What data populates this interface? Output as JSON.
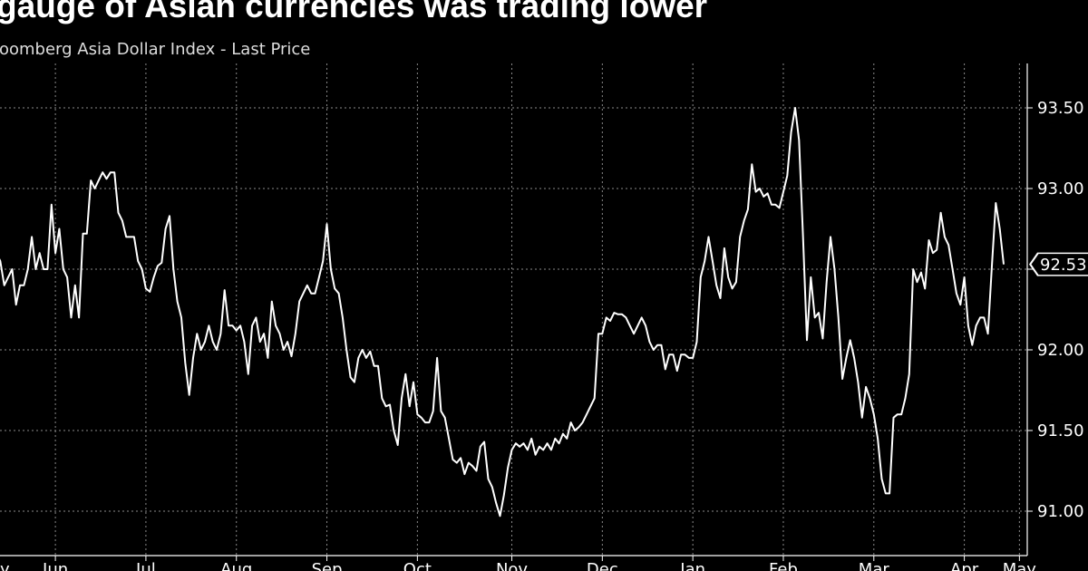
{
  "chart_data": {
    "type": "line",
    "title": "gauge of Asian currencies was trading lower",
    "subtitle": "loomberg Asia Dollar Index - Last Price",
    "ylim": [
      90.7,
      93.8
    ],
    "yticks": [
      91.0,
      91.5,
      92.0,
      92.5,
      93.0,
      93.5
    ],
    "ytick_labels": [
      "91.00",
      "91.50",
      "92.00",
      "92.50",
      "93.00",
      "93.50"
    ],
    "grid": true,
    "xticks": [
      {
        "label": "y",
        "i": 0
      },
      {
        "label": "Jun",
        "i": 15
      },
      {
        "label": "Jul",
        "i": 38
      },
      {
        "label": "Aug",
        "i": 61
      },
      {
        "label": "Sep",
        "i": 84
      },
      {
        "label": "Oct",
        "i": 107
      },
      {
        "label": "Nov",
        "i": 131
      },
      {
        "label": "Dec",
        "i": 154
      },
      {
        "label": "Jan",
        "i": 177
      },
      {
        "label": "Feb",
        "i": 200
      },
      {
        "label": "Mar",
        "i": 223
      },
      {
        "label": "Apr",
        "i": 246
      },
      {
        "label": "May",
        "i": 260
      }
    ],
    "last_value_label": "92.53",
    "series": [
      {
        "values": [
          92.6,
          92.55,
          92.4,
          92.45,
          92.5,
          92.28,
          92.4,
          92.4,
          92.5,
          92.7,
          92.5,
          92.6,
          92.5,
          92.5,
          92.9,
          92.6,
          92.75,
          92.5,
          92.45,
          92.2,
          92.4,
          92.2,
          92.72,
          92.72,
          93.05,
          93.0,
          93.05,
          93.1,
          93.06,
          93.1,
          93.1,
          92.85,
          92.8,
          92.7,
          92.7,
          92.7,
          92.55,
          92.5,
          92.38,
          92.36,
          92.45,
          92.52,
          92.54,
          92.75,
          92.83,
          92.5,
          92.3,
          92.2,
          91.92,
          91.72,
          91.95,
          92.1,
          92.0,
          92.05,
          92.15,
          92.05,
          92.0,
          92.1,
          92.37,
          92.15,
          92.15,
          92.12,
          92.15,
          92.05,
          91.85,
          92.15,
          92.2,
          92.05,
          92.1,
          91.95,
          92.3,
          92.15,
          92.1,
          92.0,
          92.05,
          91.96,
          92.1,
          92.3,
          92.35,
          92.4,
          92.35,
          92.35,
          92.45,
          92.55,
          92.78,
          92.5,
          92.38,
          92.35,
          92.2,
          92.0,
          91.83,
          91.8,
          91.95,
          92.0,
          91.95,
          91.99,
          91.9,
          91.9,
          91.7,
          91.65,
          91.66,
          91.5,
          91.41,
          91.7,
          91.85,
          91.65,
          91.8,
          91.6,
          91.58,
          91.55,
          91.55,
          91.62,
          91.95,
          91.62,
          91.58,
          91.45,
          91.32,
          91.3,
          91.33,
          91.23,
          91.3,
          91.28,
          91.25,
          91.4,
          91.43,
          91.2,
          91.15,
          91.05,
          90.97,
          91.1,
          91.27,
          91.38,
          91.42,
          91.4,
          91.42,
          91.38,
          91.45,
          91.35,
          91.4,
          91.38,
          91.42,
          91.38,
          91.45,
          91.42,
          91.48,
          91.45,
          91.55,
          91.5,
          91.52,
          91.55,
          91.6,
          91.65,
          91.7,
          92.1,
          92.1,
          92.2,
          92.18,
          92.23,
          92.22,
          92.22,
          92.2,
          92.15,
          92.1,
          92.15,
          92.2,
          92.15,
          92.05,
          92.0,
          92.03,
          92.03,
          91.88,
          91.97,
          91.97,
          91.87,
          91.97,
          91.97,
          91.95,
          91.95,
          92.05,
          92.45,
          92.55,
          92.7,
          92.55,
          92.4,
          92.32,
          92.63,
          92.45,
          92.38,
          92.42,
          92.7,
          92.8,
          92.87,
          93.15,
          92.98,
          93.0,
          92.95,
          92.97,
          92.9,
          92.9,
          92.88,
          92.98,
          93.08,
          93.35,
          93.5,
          93.3,
          92.7,
          92.06,
          92.45,
          92.2,
          92.23,
          92.07,
          92.42,
          92.7,
          92.5,
          92.2,
          91.82,
          91.95,
          92.06,
          91.95,
          91.8,
          91.58,
          91.77,
          91.7,
          91.6,
          91.45,
          91.2,
          91.11,
          91.11,
          91.58,
          91.6,
          91.6,
          91.7,
          91.85,
          92.5,
          92.42,
          92.48,
          92.38,
          92.68,
          92.6,
          92.62,
          92.85,
          92.7,
          92.65,
          92.5,
          92.35,
          92.28,
          92.45,
          92.15,
          92.03,
          92.15,
          92.2,
          92.2,
          92.1,
          92.52,
          92.91,
          92.75,
          92.53
        ]
      }
    ]
  }
}
